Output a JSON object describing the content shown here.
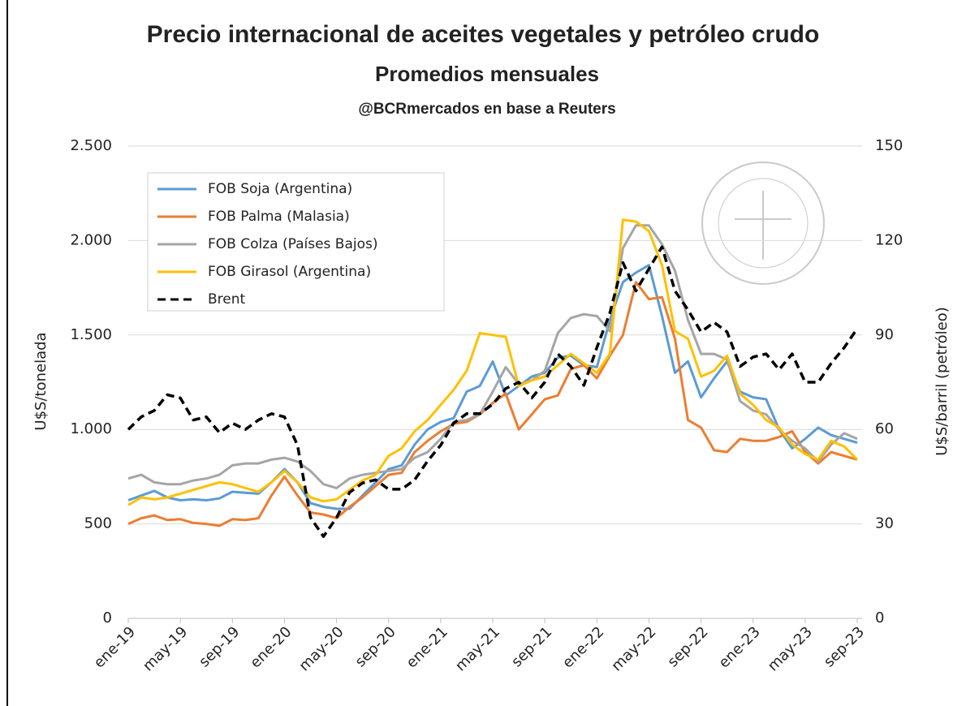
{
  "chart_data": {
    "type": "line",
    "title": "Precio internacional de aceites vegetales y petróleo crudo",
    "subtitle": "Promedios mensuales",
    "source": "@BCRmercados en base a Reuters",
    "ylabel": "U$S/tonelada",
    "y2label": "U$S/barril (petróleo)",
    "categories": [
      "ene-19",
      null,
      null,
      null,
      "may-19",
      null,
      null,
      null,
      "sep-19",
      null,
      null,
      null,
      "ene-20",
      null,
      null,
      null,
      "may-20",
      null,
      null,
      null,
      "sep-20",
      null,
      null,
      null,
      "ene-21",
      null,
      null,
      null,
      "may-21",
      null,
      null,
      null,
      "sep-21",
      null,
      null,
      null,
      "ene-22",
      null,
      null,
      null,
      "may-22",
      null,
      null,
      null,
      "sep-22",
      null,
      null,
      null,
      "ene-23",
      null,
      null,
      null,
      "may-23",
      null,
      null,
      null,
      "sep-23"
    ],
    "ylim": [
      0,
      2500
    ],
    "yticks": [
      0,
      500,
      {
        "value": 1000,
        "label": "1.000"
      },
      {
        "value": 1500,
        "label": "1.500"
      },
      {
        "value": 2000,
        "label": "2.000"
      },
      {
        "value": 2500,
        "label": "2.500"
      }
    ],
    "y2lim": [
      0,
      150
    ],
    "y2ticks": [
      0,
      30,
      60,
      90,
      120,
      150
    ],
    "grid": true,
    "legend": "upper left",
    "series": [
      {
        "name": "FOB Soja (Argentina)",
        "color": "#5b9bd5",
        "line_style": "solid",
        "values": [
          625,
          650,
          675,
          640,
          625,
          630,
          625,
          635,
          670,
          665,
          660,
          720,
          790,
          720,
          610,
          590,
          580,
          580,
          650,
          720,
          790,
          810,
          920,
          1000,
          1040,
          1060,
          1200,
          1230,
          1360,
          1180,
          1230,
          1280,
          1300,
          1380,
          1390,
          1340,
          1330,
          1580,
          1780,
          1830,
          1870,
          1600,
          1300,
          1360,
          1170,
          1270,
          1360,
          1200,
          1170,
          1160,
          1000,
          900,
          950,
          1010,
          970,
          950,
          930
        ]
      },
      {
        "name": "FOB Palma (Malasia)",
        "color": "#ed7d31",
        "line_style": "solid",
        "values": [
          500,
          530,
          545,
          520,
          525,
          505,
          500,
          490,
          525,
          520,
          530,
          650,
          750,
          650,
          560,
          550,
          530,
          590,
          640,
          700,
          760,
          770,
          880,
          940,
          990,
          1030,
          1040,
          1080,
          1140,
          1190,
          1000,
          1080,
          1160,
          1180,
          1320,
          1340,
          1270,
          1390,
          1500,
          1780,
          1690,
          1700,
          1480,
          1050,
          1010,
          890,
          880,
          950,
          940,
          940,
          960,
          990,
          880,
          820,
          880,
          860,
          840
        ]
      },
      {
        "name": "FOB Colza (Países Bajos)",
        "color": "#a5a5a5",
        "line_style": "solid",
        "values": [
          740,
          760,
          720,
          710,
          710,
          730,
          740,
          760,
          810,
          820,
          820,
          840,
          850,
          830,
          780,
          710,
          690,
          740,
          760,
          770,
          780,
          790,
          850,
          880,
          950,
          1040,
          1050,
          1080,
          1200,
          1330,
          1240,
          1260,
          1310,
          1510,
          1590,
          1610,
          1600,
          1520,
          1960,
          2080,
          2080,
          1980,
          1840,
          1580,
          1400,
          1400,
          1370,
          1150,
          1100,
          1080,
          1000,
          940,
          900,
          830,
          920,
          980,
          950
        ]
      },
      {
        "name": "FOB Girasol (Argentina)",
        "color": "#ffc000",
        "line_style": "solid",
        "values": [
          600,
          640,
          630,
          640,
          660,
          680,
          700,
          720,
          710,
          690,
          670,
          720,
          780,
          720,
          640,
          620,
          630,
          680,
          730,
          760,
          860,
          900,
          990,
          1050,
          1130,
          1210,
          1310,
          1510,
          1500,
          1490,
          1230,
          1260,
          1280,
          1340,
          1400,
          1350,
          1300,
          1400,
          2110,
          2100,
          2050,
          1870,
          1520,
          1480,
          1280,
          1310,
          1390,
          1190,
          1130,
          1050,
          1010,
          920,
          870,
          840,
          940,
          910,
          840
        ]
      },
      {
        "name": "Brent",
        "color": "#000000",
        "line_style": "dashed",
        "axis": "y2",
        "values": [
          60,
          64,
          66,
          71,
          70,
          63,
          64,
          59,
          62,
          60,
          63,
          65,
          64,
          55,
          32,
          26,
          32,
          40,
          43,
          44,
          41,
          41,
          44,
          50,
          55,
          62,
          65,
          65,
          68,
          73,
          75,
          70,
          75,
          84,
          80,
          74,
          86,
          97,
          113,
          104,
          111,
          118,
          104,
          98,
          91,
          94,
          91,
          80,
          83,
          84,
          79,
          84,
          75,
          75,
          81,
          86,
          92
        ]
      }
    ]
  }
}
